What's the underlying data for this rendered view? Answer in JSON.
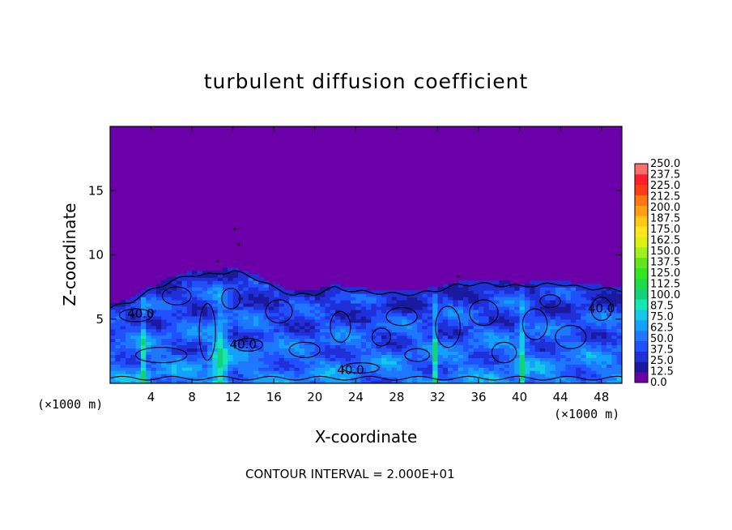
{
  "chart_data": {
    "type": "heatmap",
    "title": "turbulent diffusion coefficient",
    "xlabel": "X-coordinate",
    "ylabel": "Z-coordinate",
    "x_unit": "(×1000 m)",
    "footnote": "CONTOUR INTERVAL = 2.000E+01",
    "xlim": [
      0,
      50
    ],
    "ylim": [
      0,
      20
    ],
    "x_ticks": [
      4,
      8,
      12,
      16,
      20,
      24,
      28,
      32,
      36,
      40,
      44,
      48
    ],
    "y_ticks": [
      5,
      10,
      15
    ],
    "colorbar": {
      "levels": [
        "0.0",
        "12.5",
        "25.0",
        "37.5",
        "50.0",
        "62.5",
        "75.0",
        "87.5",
        "100.0",
        "112.5",
        "125.0",
        "137.5",
        "150.0",
        "162.5",
        "175.0",
        "187.5",
        "200.0",
        "212.5",
        "225.0",
        "237.5",
        "250.0"
      ],
      "colors": [
        "#6b00a8",
        "#1a1aa0",
        "#2030d8",
        "#2050ff",
        "#1e78ff",
        "#14a0ff",
        "#14c8e6",
        "#14e6b4",
        "#14d278",
        "#1edc46",
        "#32e61e",
        "#64e61e",
        "#a0f01e",
        "#dcf014",
        "#ffe61e",
        "#ffc814",
        "#ffa014",
        "#ff7814",
        "#ff3c14",
        "#ff1e28",
        "#ff6e6e"
      ]
    },
    "background_value": 0.0,
    "contour_labels": [
      {
        "text": "40.0",
        "x": 3.0,
        "z": 5.4
      },
      {
        "text": "40.0",
        "x": 13.0,
        "z": 3.0
      },
      {
        "text": "40.0",
        "x": 23.5,
        "z": 1.0
      },
      {
        "text": "40.0",
        "x": 48.0,
        "z": 5.8
      }
    ],
    "turbulent_layer_top_z": [
      [
        0,
        6.0
      ],
      [
        2,
        6.5
      ],
      [
        4,
        7.4
      ],
      [
        6,
        8.1
      ],
      [
        8,
        8.6
      ],
      [
        10,
        8.6
      ],
      [
        12,
        8.9
      ],
      [
        14,
        8.4
      ],
      [
        16,
        7.6
      ],
      [
        18,
        7.0
      ],
      [
        20,
        7.1
      ],
      [
        22,
        7.6
      ],
      [
        24,
        7.3
      ],
      [
        26,
        7.2
      ],
      [
        28,
        7.1
      ],
      [
        30,
        7.1
      ],
      [
        32,
        7.4
      ],
      [
        34,
        7.8
      ],
      [
        36,
        7.9
      ],
      [
        38,
        7.8
      ],
      [
        40,
        7.7
      ],
      [
        42,
        7.8
      ],
      [
        44,
        7.9
      ],
      [
        46,
        7.6
      ],
      [
        48,
        7.5
      ],
      [
        50,
        7.4
      ]
    ]
  }
}
